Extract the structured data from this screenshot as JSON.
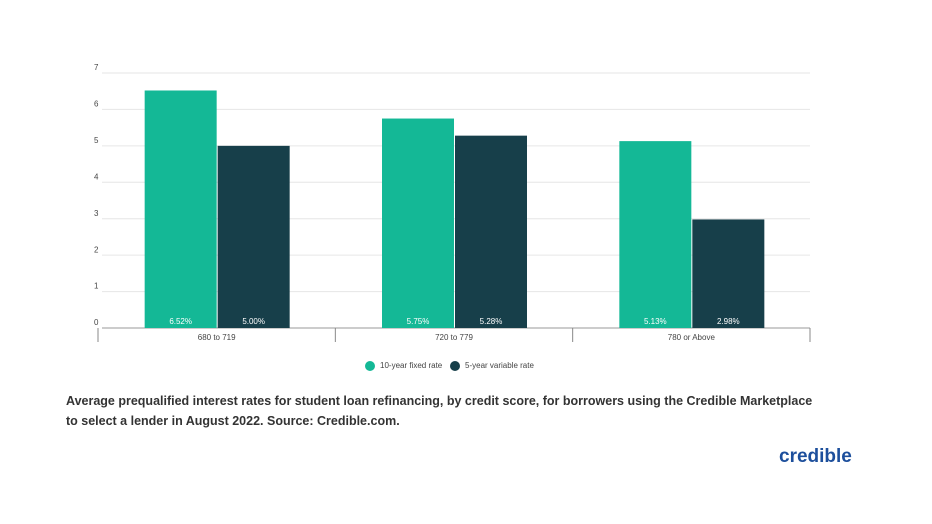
{
  "chart_data": {
    "type": "bar",
    "categories": [
      "680 to 719",
      "720 to 779",
      "780 or Above"
    ],
    "series": [
      {
        "name": "10-year fixed rate",
        "color": "#14b896",
        "values": [
          6.52,
          5.75,
          5.13
        ],
        "value_labels": [
          "6.52%",
          "5.75%",
          "5.13%"
        ]
      },
      {
        "name": "5-year variable rate",
        "color": "#173f4a",
        "values": [
          5.0,
          5.28,
          2.98
        ],
        "value_labels": [
          "5.00%",
          "5.28%",
          "2.98%"
        ]
      }
    ],
    "ylim": [
      0,
      7
    ],
    "yticks": [
      0,
      1,
      2,
      3,
      4,
      5,
      6,
      7
    ],
    "grid": true,
    "legend": "bottom",
    "caption": "Average prequalified interest rates for student loan refinancing, by credit score, for borrowers using the Credible Marketplace to select a lender in August 2022. Source: Credible.com.",
    "logo": "credible"
  }
}
